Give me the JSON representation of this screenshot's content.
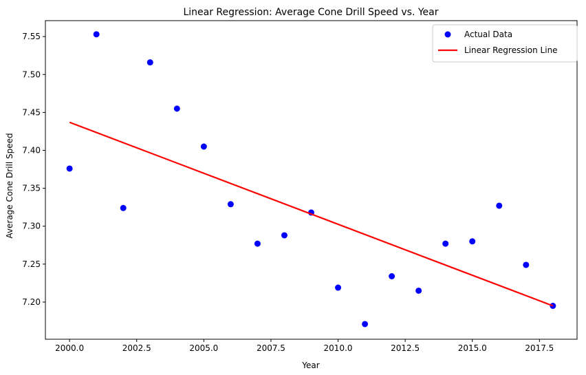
{
  "chart_data": {
    "type": "scatter",
    "title": "Linear Regression: Average Cone Drill Speed vs. Year",
    "xlabel": "Year",
    "ylabel": "Average Cone Drill Speed",
    "xlim": [
      1999.1,
      2018.9
    ],
    "ylim": [
      7.151,
      7.571
    ],
    "xticks": [
      2000.0,
      2002.5,
      2005.0,
      2007.5,
      2010.0,
      2012.5,
      2015.0,
      2017.5
    ],
    "xtick_labels": [
      "2000.0",
      "2002.5",
      "2005.0",
      "2007.5",
      "2010.0",
      "2012.5",
      "2015.0",
      "2017.5"
    ],
    "yticks": [
      7.2,
      7.25,
      7.3,
      7.35,
      7.4,
      7.45,
      7.5,
      7.55
    ],
    "ytick_labels": [
      "7.20",
      "7.25",
      "7.30",
      "7.35",
      "7.40",
      "7.45",
      "7.50",
      "7.55"
    ],
    "grid": false,
    "legend_position": "top-right",
    "series": [
      {
        "name": "Actual Data",
        "kind": "scatter",
        "color": "#0000ff",
        "x": [
          2000,
          2001,
          2002,
          2003,
          2004,
          2005,
          2006,
          2007,
          2008,
          2009,
          2010,
          2011,
          2012,
          2013,
          2014,
          2015,
          2016,
          2017,
          2018
        ],
        "y": [
          7.376,
          7.553,
          7.324,
          7.516,
          7.455,
          7.405,
          7.329,
          7.277,
          7.288,
          7.318,
          7.219,
          7.171,
          7.234,
          7.215,
          7.277,
          7.28,
          7.327,
          7.249,
          7.195
        ]
      },
      {
        "name": "Linear Regression Line",
        "kind": "line",
        "color": "#ff0000",
        "x": [
          2000,
          2018
        ],
        "y": [
          7.437,
          7.195
        ]
      }
    ]
  }
}
